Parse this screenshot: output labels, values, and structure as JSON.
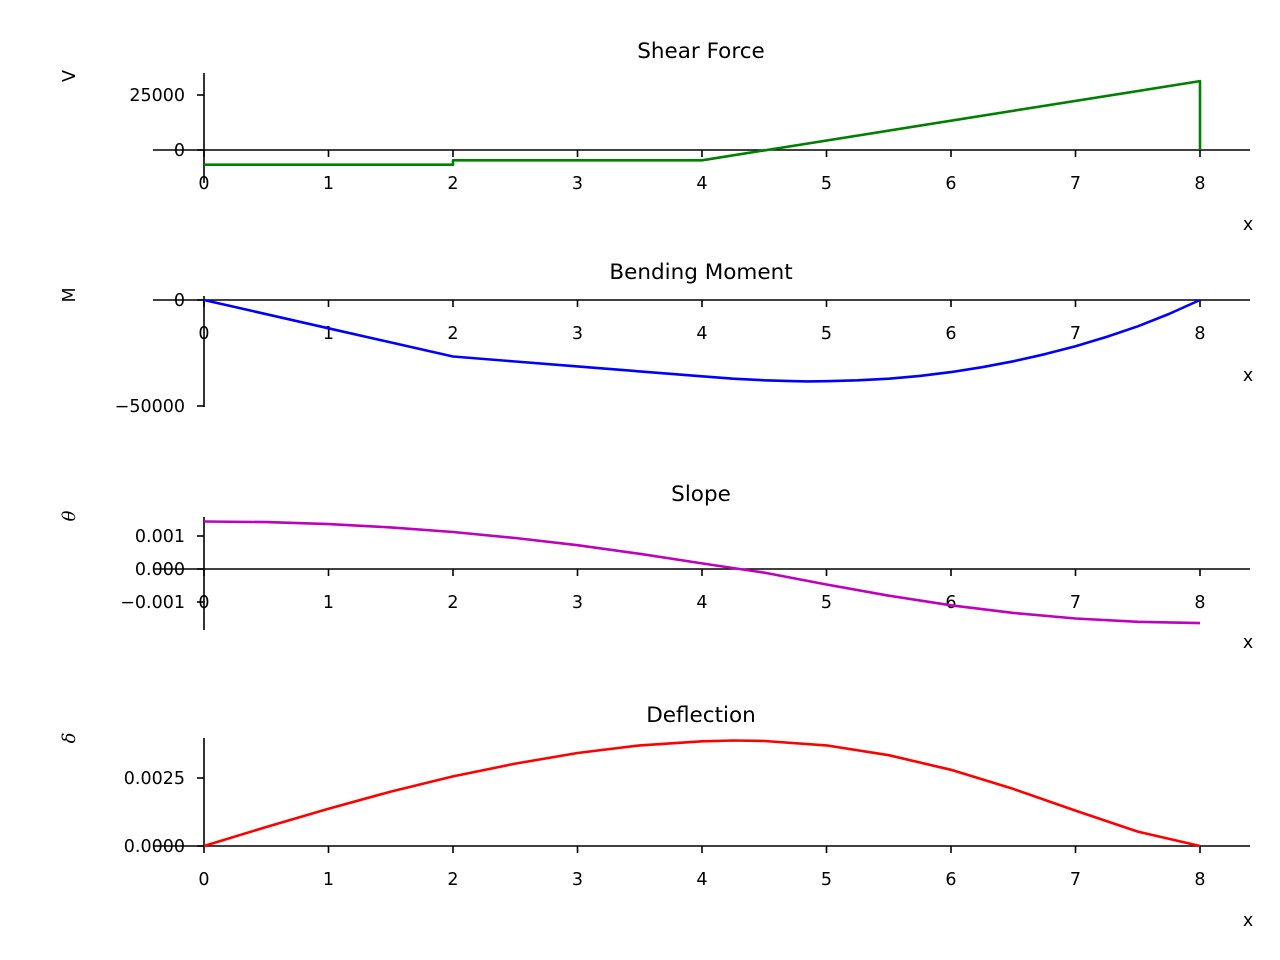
{
  "chart_data": [
    {
      "type": "line",
      "title": "Shear Force",
      "xlabel": "x",
      "ylabel": "V",
      "x_ticks": [
        "0",
        "1",
        "2",
        "3",
        "4",
        "5",
        "6",
        "7",
        "8"
      ],
      "y_ticks": [
        "25000",
        "0"
      ],
      "xlim": [
        0,
        8.4
      ],
      "ylim": [
        -10000,
        34000
      ],
      "color": "#008000",
      "series": [
        {
          "x": [
            0,
            2,
            2,
            4,
            8,
            8
          ],
          "y": [
            -6667,
            -6667,
            -4667,
            -4667,
            31333,
            0
          ]
        }
      ]
    },
    {
      "type": "line",
      "title": "Bending Moment",
      "xlabel": "x",
      "ylabel": "M",
      "x_ticks": [
        "0",
        "1",
        "2",
        "3",
        "4",
        "5",
        "6",
        "7",
        "8"
      ],
      "y_ticks": [
        "0",
        "−50000"
      ],
      "xlim": [
        0,
        8.4
      ],
      "ylim": [
        -50000,
        0
      ],
      "color": "#0000ff",
      "series": [
        {
          "x": [
            0,
            1,
            2,
            2.5,
            3,
            3.5,
            4,
            4.25,
            4.5,
            4.75,
            4.85,
            5,
            5.25,
            5.5,
            5.75,
            6,
            6.25,
            6.5,
            6.75,
            7,
            7.25,
            7.5,
            7.75,
            8
          ],
          "y": [
            0,
            -13333,
            -26667,
            -29000,
            -31333,
            -33667,
            -36000,
            -37100,
            -37900,
            -38300,
            -38400,
            -38300,
            -37900,
            -37100,
            -35800,
            -34000,
            -31700,
            -28900,
            -25600,
            -21800,
            -17400,
            -12400,
            -6600,
            0
          ]
        }
      ]
    },
    {
      "type": "line",
      "title": "Slope",
      "xlabel": "x",
      "ylabel": "θ",
      "x_ticks": [
        "0",
        "1",
        "2",
        "3",
        "4",
        "5",
        "6",
        "7",
        "8"
      ],
      "y_ticks": [
        "0.001",
        "0.000",
        "−0.001"
      ],
      "xlim": [
        0,
        8.4
      ],
      "ylim": [
        -0.0018,
        0.0015
      ],
      "color": "#bf00bf",
      "series": [
        {
          "x": [
            0,
            0.5,
            1,
            1.5,
            2,
            2.5,
            3,
            3.5,
            4,
            4.3,
            4.5,
            5,
            5.5,
            6,
            6.5,
            7,
            7.5,
            8
          ],
          "y": [
            0.00144,
            0.00142,
            0.00136,
            0.00126,
            0.00112,
            0.00094,
            0.00072,
            0.00046,
            0.00017,
            0.0,
            -0.00011,
            -0.00047,
            -0.00081,
            -0.0011,
            -0.00133,
            -0.0015,
            -0.0016,
            -0.00164
          ]
        }
      ]
    },
    {
      "type": "line",
      "title": "Deflection",
      "xlabel": "x",
      "ylabel": "δ",
      "x_ticks": [
        "0",
        "1",
        "2",
        "3",
        "4",
        "5",
        "6",
        "7",
        "8"
      ],
      "y_ticks": [
        "0.0025",
        "0.0000"
      ],
      "xlim": [
        0,
        8.4
      ],
      "ylim": [
        0,
        0.004
      ],
      "color": "#ff0000",
      "series": [
        {
          "x": [
            0,
            0.5,
            1,
            1.5,
            2,
            2.5,
            3,
            3.5,
            4,
            4.25,
            4.5,
            5,
            5.5,
            6,
            6.5,
            7,
            7.5,
            8
          ],
          "y": [
            0,
            0.0007,
            0.00137,
            0.002,
            0.00256,
            0.00303,
            0.00342,
            0.0037,
            0.00385,
            0.00388,
            0.00386,
            0.0037,
            0.00334,
            0.0028,
            0.0021,
            0.0013,
            0.00053,
            0
          ]
        }
      ]
    }
  ]
}
